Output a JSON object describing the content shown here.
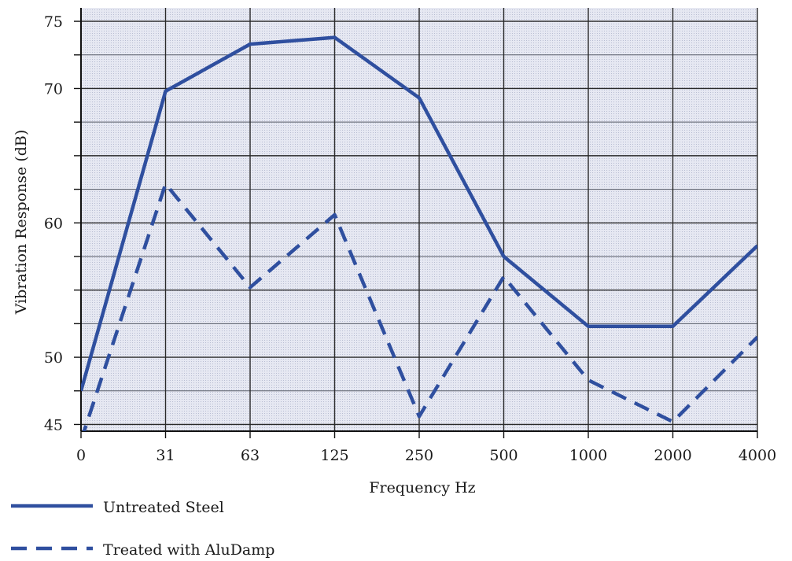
{
  "chart_data": {
    "type": "line",
    "xlabel": "Frequency Hz",
    "ylabel": "Vibration Response (dB)",
    "categories": [
      "0",
      "31",
      "63",
      "125",
      "250",
      "500",
      "1000",
      "2000",
      "4000"
    ],
    "yticks": [
      45,
      50,
      60,
      70,
      75
    ],
    "ylim": [
      44.5,
      76
    ],
    "grid": true,
    "legend_position": "bottom-left",
    "series": [
      {
        "name": "Untreated Steel",
        "style": "solid",
        "color": "#2f4f9f",
        "values": [
          47.5,
          69.8,
          73.3,
          73.8,
          69.3,
          57.5,
          52.3,
          52.3,
          58.3
        ]
      },
      {
        "name": "Treated with AluDamp",
        "style": "dashed",
        "color": "#2f4f9f",
        "values": [
          43.8,
          62.9,
          55.2,
          60.6,
          45.6,
          56.0,
          48.3,
          45.2,
          51.5
        ]
      }
    ]
  }
}
